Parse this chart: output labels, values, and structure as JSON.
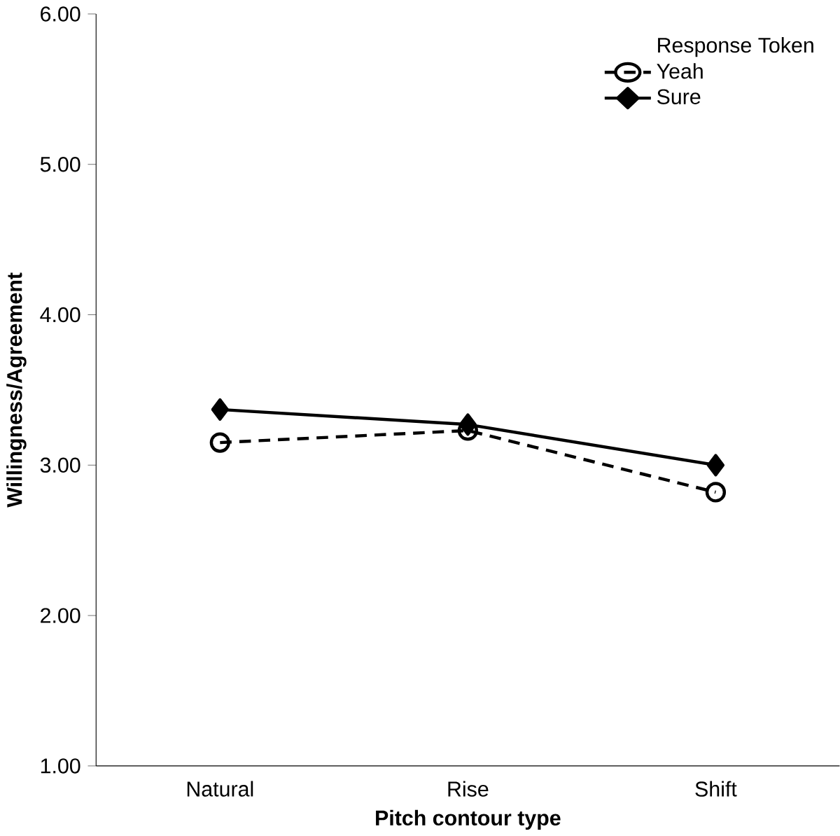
{
  "chart_data": {
    "type": "line",
    "xlabel": "Pitch contour type",
    "ylabel": "Willingness/Agreement",
    "legend_title": "Response Token",
    "categories": [
      "Natural",
      "Rise",
      "Shift"
    ],
    "series": [
      {
        "name": "Yeah",
        "color": "#000000",
        "values": [
          3.15,
          3.23,
          2.82
        ],
        "marker": "circle",
        "line_style": "dashed"
      },
      {
        "name": "Sure",
        "color": "#000000",
        "values": [
          3.37,
          3.27,
          3.0
        ],
        "marker": "diamond",
        "line_style": "solid"
      }
    ],
    "ylim": [
      1,
      6
    ],
    "yticks": [
      {
        "value": 1,
        "label": "1.00"
      },
      {
        "value": 2,
        "label": "2.00"
      },
      {
        "value": 3,
        "label": "3.00"
      },
      {
        "value": 4,
        "label": "4.00"
      },
      {
        "value": 5,
        "label": "5.00"
      },
      {
        "value": 6,
        "label": "6.00"
      }
    ],
    "legend": "top right",
    "grid": false
  }
}
